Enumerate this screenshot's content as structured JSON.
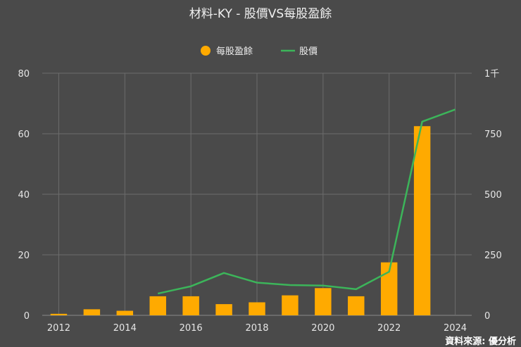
{
  "chart_data": {
    "type": "bar",
    "title": "材料-KY - 股價VS每股盈餘",
    "source": "資料來源: 優分析",
    "legend": [
      {
        "name": "每股盈餘",
        "marker": "circle",
        "color": "#ffaa00"
      },
      {
        "name": "股價",
        "marker": "line",
        "color": "#3cb55a"
      }
    ],
    "legend_position": "top-center",
    "grid": true,
    "x": [
      2012,
      2013,
      2014,
      2015,
      2016,
      2017,
      2018,
      2019,
      2020,
      2021,
      2022,
      2023,
      2024
    ],
    "x_ticks": [
      "2012",
      "2014",
      "2016",
      "2018",
      "2020",
      "2022",
      "2024"
    ],
    "y_left": {
      "min": 0,
      "max": 80,
      "ticks": [
        "0",
        "20",
        "40",
        "60",
        "80"
      ]
    },
    "y_right": {
      "min": 0,
      "max": 1000,
      "ticks": [
        "0",
        "250",
        "500",
        "750",
        "1千"
      ]
    },
    "series": [
      {
        "name": "每股盈餘",
        "type": "bar",
        "axis": "left",
        "color": "#ffaa00",
        "values": [
          0.5,
          2.0,
          1.5,
          6.3,
          6.3,
          3.7,
          4.3,
          6.6,
          9.0,
          6.3,
          17.5,
          62.5,
          null
        ]
      },
      {
        "name": "股價",
        "type": "line",
        "axis": "right",
        "color": "#3cb55a",
        "values": [
          null,
          null,
          null,
          90,
          120,
          175,
          135,
          125,
          123,
          108,
          180,
          800,
          850
        ]
      }
    ]
  }
}
